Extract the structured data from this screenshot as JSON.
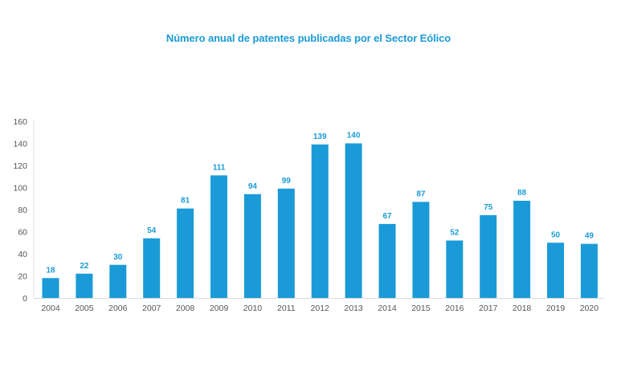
{
  "chart_data": {
    "type": "bar",
    "title": "Número anual de patentes publicadas por el Sector Eólico",
    "xlabel": "",
    "ylabel": "",
    "categories": [
      "2004",
      "2005",
      "2006",
      "2007",
      "2008",
      "2009",
      "2010",
      "2011",
      "2012",
      "2013",
      "2014",
      "2015",
      "2016",
      "2017",
      "2018",
      "2019",
      "2020"
    ],
    "values": [
      18,
      22,
      30,
      54,
      81,
      111,
      94,
      99,
      139,
      140,
      67,
      87,
      52,
      75,
      88,
      50,
      49
    ],
    "data_labels": [
      "18",
      "22",
      "30",
      "54",
      "81",
      "111",
      "94",
      "99",
      "139",
      "140",
      "67",
      "87",
      "52",
      "75",
      "88",
      "50",
      "49"
    ],
    "ylim": [
      0,
      160
    ],
    "yticks": [
      0,
      20,
      40,
      60,
      80,
      100,
      120,
      140,
      160
    ],
    "grid": false,
    "legend": "none",
    "bar_color": "#1a9bd7",
    "label_color": "#1a9bd7"
  }
}
